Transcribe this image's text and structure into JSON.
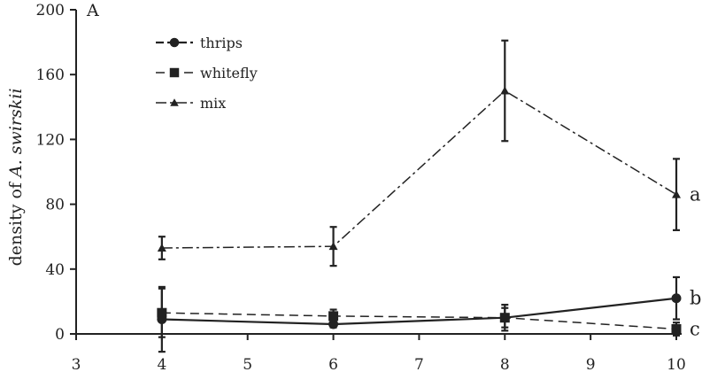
{
  "chart_data": {
    "type": "line",
    "panel_label": "A",
    "ylabel_prefix": "density of ",
    "ylabel_italic": "A. swirskii",
    "xlabel": "",
    "xlim": [
      3,
      10
    ],
    "ylim": [
      0,
      200
    ],
    "x_ticks": [
      3,
      4,
      5,
      6,
      7,
      8,
      9,
      10
    ],
    "y_ticks": [
      0,
      40,
      80,
      120,
      160,
      200
    ],
    "grid": false,
    "legend_position": "top-left",
    "series": [
      {
        "name": "thrips",
        "marker": "circle",
        "line_style": "long-dash",
        "x": [
          4,
          6,
          8,
          10
        ],
        "y": [
          9,
          6,
          10,
          22
        ],
        "err": [
          20,
          2,
          8,
          13
        ],
        "group_letter": "b"
      },
      {
        "name": "whitefly",
        "marker": "square",
        "line_style": "dash",
        "x": [
          4,
          6,
          8,
          10
        ],
        "y": [
          13,
          11,
          10,
          3
        ],
        "err": [
          15,
          4,
          6,
          4
        ],
        "group_letter": "c"
      },
      {
        "name": "mix",
        "marker": "triangle",
        "line_style": "dash-dot",
        "x": [
          4,
          6,
          8,
          10
        ],
        "y": [
          53,
          54,
          150,
          86
        ],
        "err": [
          7,
          12,
          31,
          22
        ],
        "group_letter": "a"
      }
    ]
  },
  "colors": {
    "ink": "#222222",
    "background": "#ffffff"
  }
}
